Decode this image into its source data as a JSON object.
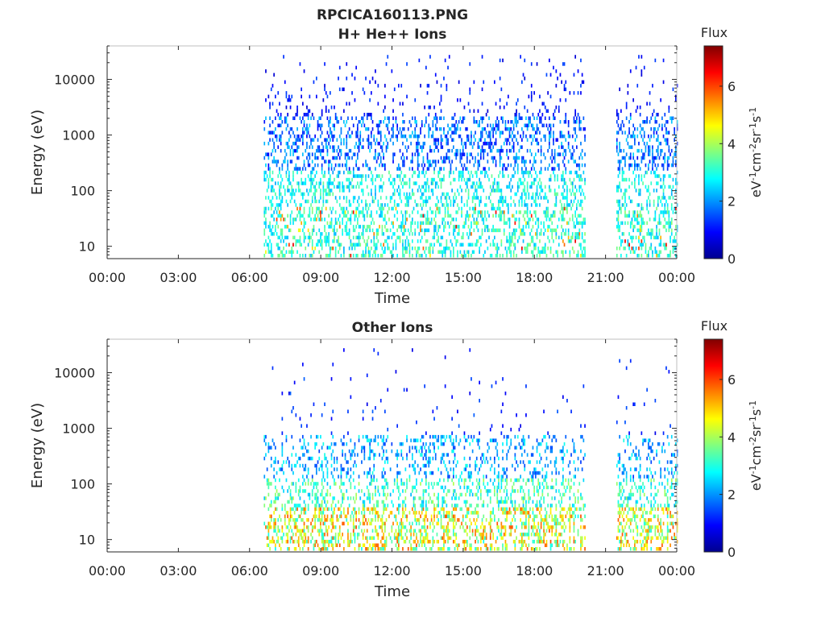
{
  "figure_title": "RPCICA160113.PNG",
  "chart_data": [
    {
      "type": "heatmap",
      "title": "H+ He++ Ions",
      "xlabel": "Time",
      "ylabel": "Energy (eV)",
      "x_tick_labels": [
        "00:00",
        "03:00",
        "06:00",
        "09:00",
        "12:00",
        "15:00",
        "18:00",
        "21:00",
        "00:00"
      ],
      "x_ticks_hours": [
        0,
        3,
        6,
        9,
        12,
        15,
        18,
        21,
        24
      ],
      "xlim_hours": [
        0,
        24
      ],
      "y_scale": "log",
      "y_tick_labels": [
        "10",
        "100",
        "1000",
        "10000"
      ],
      "y_ticks": [
        10,
        100,
        1000,
        10000
      ],
      "ylim": [
        6,
        40000
      ],
      "data_coverage_hours": [
        [
          6.6,
          20.15
        ],
        [
          21.45,
          24
        ]
      ],
      "seed": 17,
      "profile": "hplus",
      "colorbar": {
        "label": "Flux",
        "unit_text": "eV-1cm-2sr-1s-1",
        "ticks": [
          0,
          2,
          4,
          6
        ],
        "range": [
          0,
          7.4
        ],
        "colormap": "jet"
      }
    },
    {
      "type": "heatmap",
      "title": "Other Ions",
      "xlabel": "Time",
      "ylabel": "Energy (eV)",
      "x_tick_labels": [
        "00:00",
        "03:00",
        "06:00",
        "09:00",
        "12:00",
        "15:00",
        "18:00",
        "21:00",
        "00:00"
      ],
      "x_ticks_hours": [
        0,
        3,
        6,
        9,
        12,
        15,
        18,
        21,
        24
      ],
      "xlim_hours": [
        0,
        24
      ],
      "y_scale": "log",
      "y_tick_labels": [
        "10",
        "100",
        "1000",
        "10000"
      ],
      "y_ticks": [
        10,
        100,
        1000,
        10000
      ],
      "ylim": [
        6,
        40000
      ],
      "data_coverage_hours": [
        [
          6.6,
          20.15
        ],
        [
          21.45,
          24
        ]
      ],
      "seed": 42,
      "profile": "other",
      "colorbar": {
        "label": "Flux",
        "unit_text": "eV-1cm-2sr-1s-1",
        "ticks": [
          0,
          2,
          4,
          6
        ],
        "range": [
          0,
          7.4
        ],
        "colormap": "jet"
      }
    }
  ]
}
